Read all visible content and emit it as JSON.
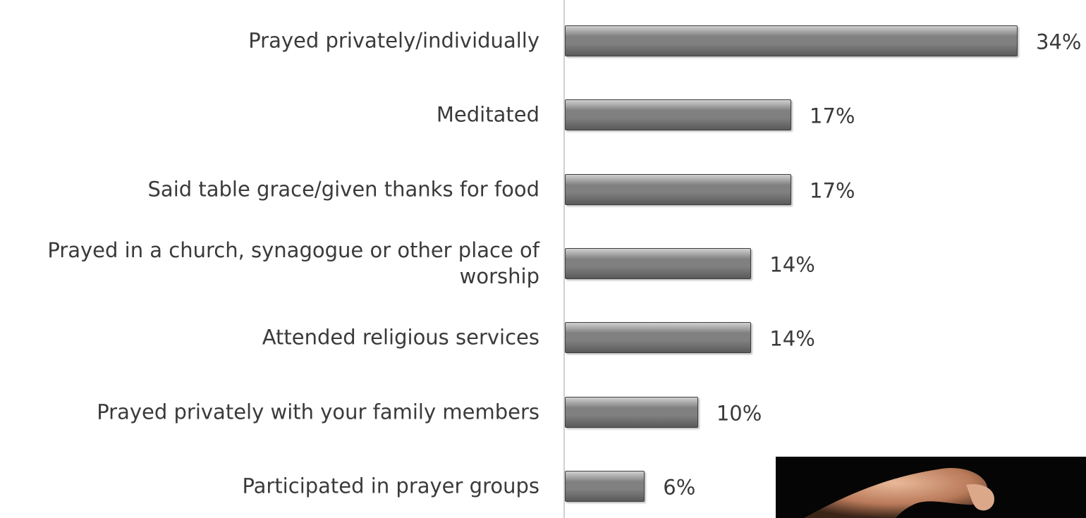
{
  "chart_data": {
    "type": "bar",
    "orientation": "horizontal",
    "categories": [
      "Prayed privately/individually",
      "Meditated",
      "Said table grace/given thanks for food",
      "Prayed in a church, synagogue or other place of worship",
      "Attended religious services",
      "Prayed privately with your family members",
      "Participated in prayer groups"
    ],
    "values": [
      34,
      17,
      17,
      14,
      14,
      10,
      6
    ],
    "value_labels": [
      "34%",
      "17%",
      "17%",
      "14%",
      "14%",
      "10%",
      "6%"
    ],
    "color": "#808080"
  }
}
